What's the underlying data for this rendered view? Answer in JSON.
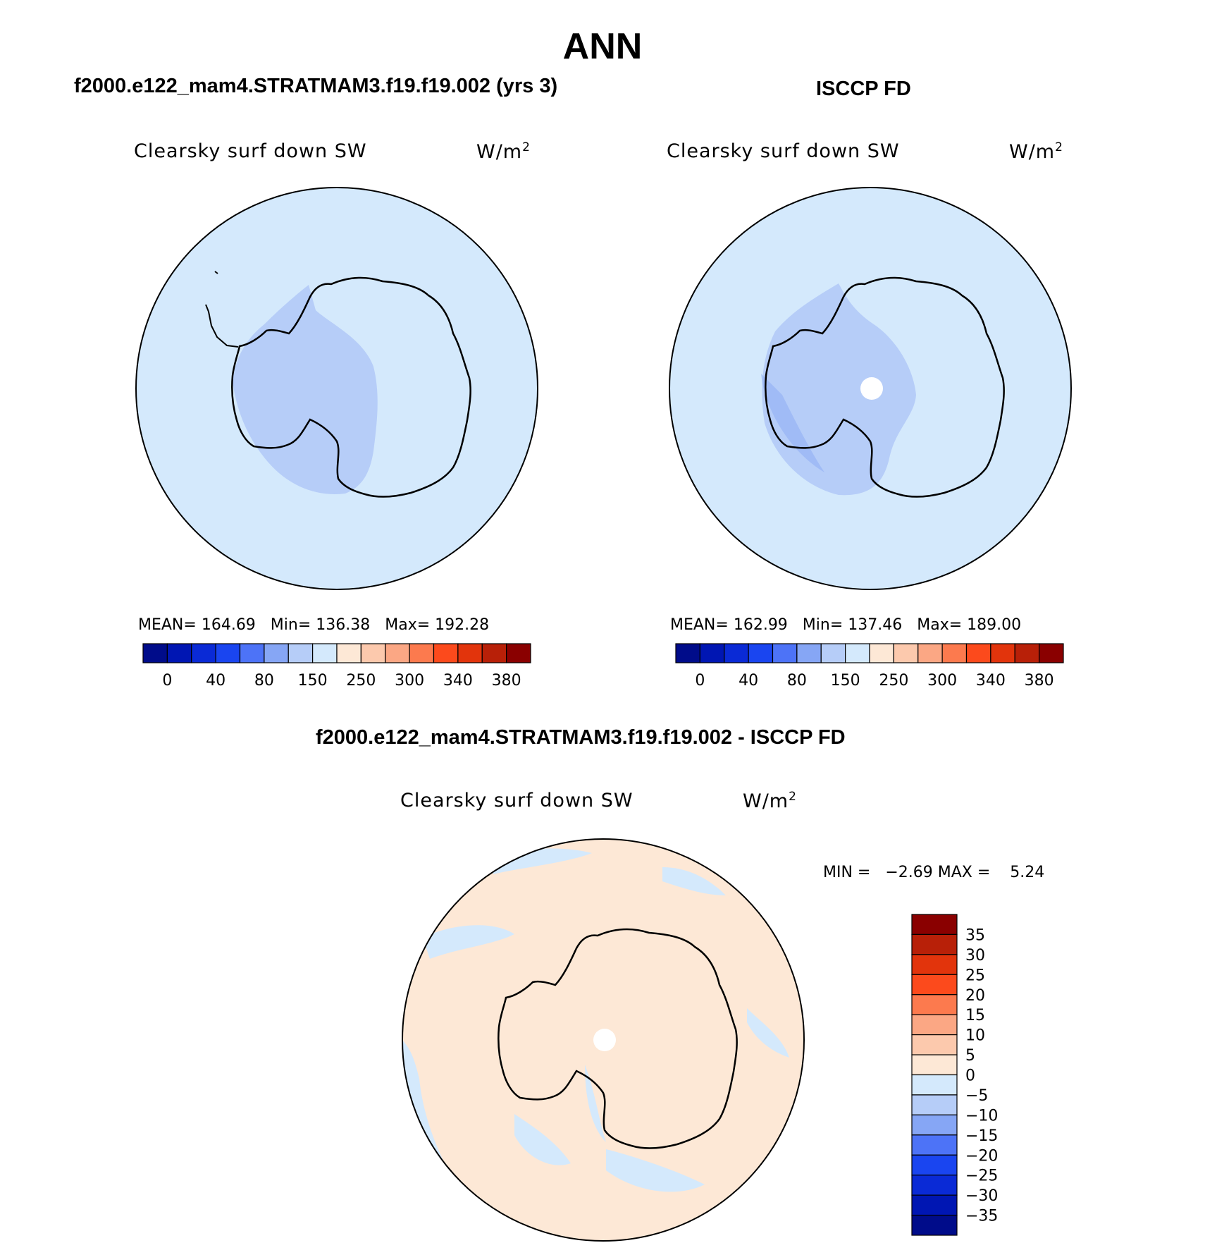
{
  "title": "ANN",
  "panels": [
    {
      "case_title": "f2000.e122_mam4.STRATMAM3.f19.f19.002 (yrs 3)",
      "variable": "Clearsky surf down SW",
      "units": "W/m",
      "units_sup": "2",
      "stats": {
        "mean_label": "MEAN=",
        "mean": "164.69",
        "min_label": "Min=",
        "min": "136.38",
        "max_label": "Max=",
        "max": "192.28"
      }
    },
    {
      "case_title": "ISCCP FD",
      "variable": "Clearsky surf down SW",
      "units": "W/m",
      "units_sup": "2",
      "stats": {
        "mean_label": "MEAN=",
        "mean": "162.99",
        "min_label": "Min=",
        "min": "137.46",
        "max_label": "Max=",
        "max": "189.00"
      }
    },
    {
      "case_title": "f2000.e122_mam4.STRATMAM3.f19.f19.002 - ISCCP FD",
      "variable": "Clearsky surf down SW",
      "units": "W/m",
      "units_sup": "2",
      "stats": {
        "min_label": "MIN =",
        "min": "−2.69",
        "max_label": "MAX =",
        "max": "5.24"
      }
    }
  ],
  "colorbar_top": {
    "colors": [
      "#000c8a",
      "#0016b3",
      "#0a2ad6",
      "#1a45f0",
      "#4d73f7",
      "#86a6f5",
      "#b6cdf8",
      "#d4e9fc",
      "#fde8d6",
      "#fcc9ad",
      "#fba784",
      "#fc7a4e",
      "#fc4a1c",
      "#e2340c",
      "#b82008",
      "#8a0000"
    ],
    "ticks": [
      "0",
      "40",
      "80",
      "150",
      "250",
      "300",
      "340",
      "380"
    ]
  },
  "colorbar_diff": {
    "colors": [
      "#8a0000",
      "#b82008",
      "#e2340c",
      "#fc4a1c",
      "#fc7a4e",
      "#fba784",
      "#fcc9ad",
      "#fde8d6",
      "#d4e9fc",
      "#b6cdf8",
      "#86a6f5",
      "#4d73f7",
      "#1a45f0",
      "#0a2ad6",
      "#0016b3",
      "#000c8a"
    ],
    "labels": [
      "35",
      "30",
      "25",
      "20",
      "15",
      "10",
      "5",
      "0",
      "−5",
      "−10",
      "−15",
      "−20",
      "−25",
      "−30",
      "−35"
    ]
  },
  "colors": {
    "ocean": "#d4e9fc",
    "interior_low": "#b6cdf8",
    "interior_lower": "#86a6f5",
    "positive": "#fde8d6",
    "missing": "#ffffff"
  }
}
